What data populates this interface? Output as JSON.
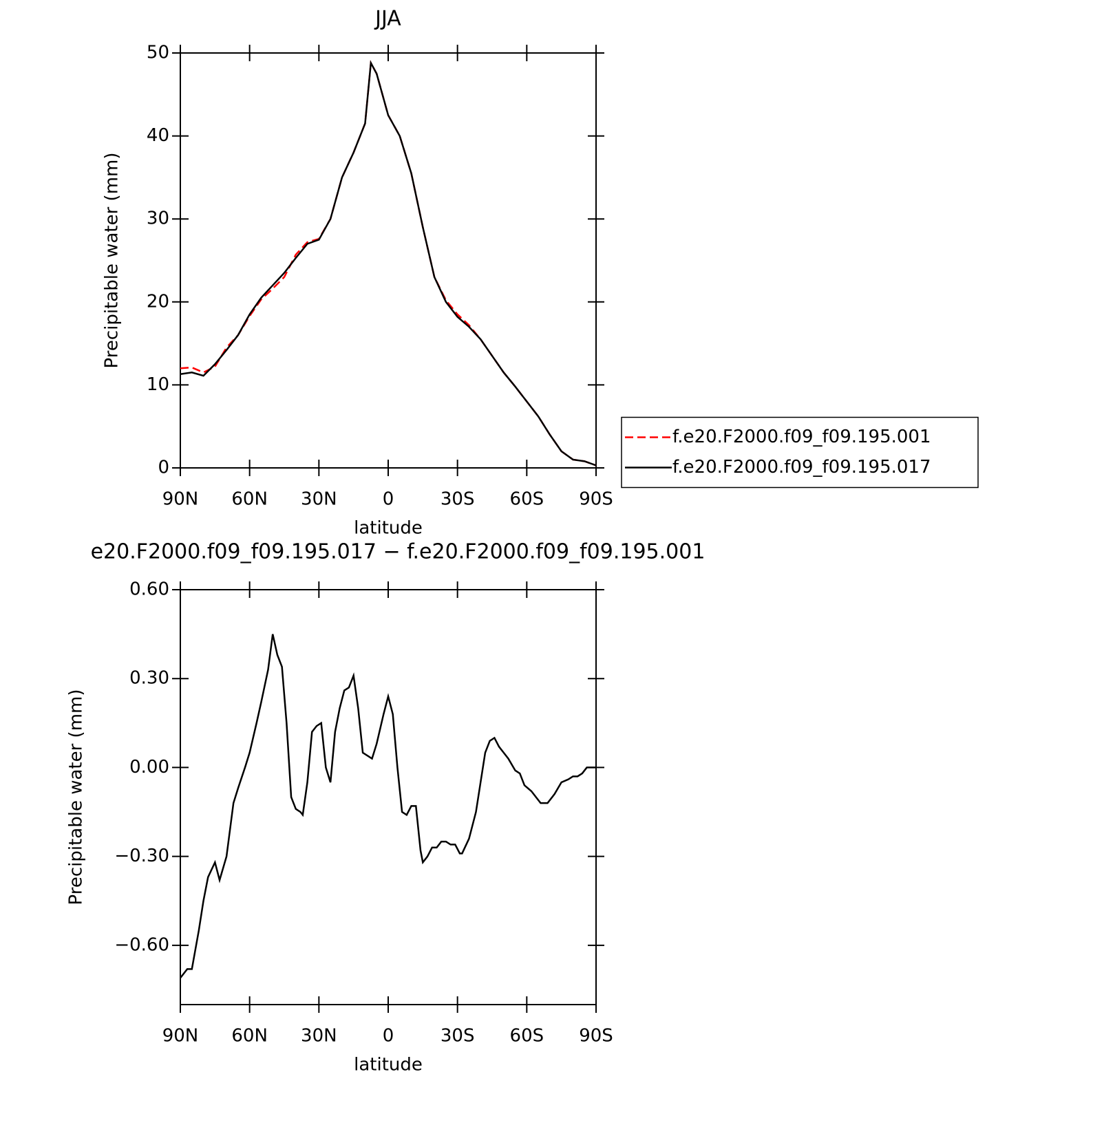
{
  "chart_data": [
    {
      "type": "line",
      "title": "JJA",
      "ylabel": "Precipitable water (mm)",
      "xlabel": "latitude",
      "xlim": [
        90,
        -90
      ],
      "xticks": [
        {
          "value": 90,
          "label": "90N"
        },
        {
          "value": 60,
          "label": "60N"
        },
        {
          "value": 30,
          "label": "30N"
        },
        0,
        {
          "value": -30,
          "label": "30S"
        },
        {
          "value": -60,
          "label": "60S"
        },
        {
          "value": -90,
          "label": "90S"
        }
      ],
      "ylim": [
        0,
        50
      ],
      "yticks": [
        0,
        10,
        20,
        30,
        40,
        50
      ],
      "legend": "right",
      "x": [
        90,
        85,
        80,
        75,
        70,
        65,
        60,
        55,
        50,
        45,
        40,
        35,
        30,
        25,
        20,
        15,
        10,
        7.5,
        5,
        0,
        -5,
        -10,
        -15,
        -20,
        -25,
        -30,
        -35,
        -40,
        -45,
        -50,
        -55,
        -60,
        -65,
        -70,
        -75,
        -80,
        -85,
        -90
      ],
      "series": [
        {
          "name": "f.e20.F2000.f09_f09.195.001",
          "color": "#ff0000",
          "dash": true,
          "values": [
            12,
            12.1,
            11.5,
            12.2,
            14.5,
            16,
            18.3,
            20.3,
            21.6,
            23,
            25.7,
            27.2,
            27.6,
            30,
            35,
            38,
            41.5,
            48.8,
            47.5,
            42.5,
            40,
            35.5,
            29,
            23,
            20.2,
            18.5,
            17.2,
            15.5,
            13.5,
            11.5,
            9.8,
            8,
            6.2,
            4,
            2,
            1,
            0.8,
            0.3
          ]
        },
        {
          "name": "f.e20.F2000.f09_f09.195.017",
          "color": "#000000",
          "dash": false,
          "values": [
            11.3,
            11.5,
            11.1,
            12.5,
            14.2,
            16,
            18.5,
            20.5,
            22,
            23.5,
            25.3,
            27,
            27.5,
            30,
            35,
            38,
            41.5,
            48.8,
            47.5,
            42.5,
            40,
            35.5,
            29,
            23,
            20,
            18.2,
            17,
            15.5,
            13.5,
            11.5,
            9.8,
            8,
            6.2,
            4,
            2,
            1,
            0.8,
            0.3
          ]
        }
      ]
    },
    {
      "type": "line",
      "title": "e20.F2000.f09_f09.195.017 − f.e20.F2000.f09_f09.195.001",
      "ylabel": "Precipitable water (mm)",
      "xlabel": "latitude",
      "xlim": [
        90,
        -90
      ],
      "xticks": [
        {
          "value": 90,
          "label": "90N"
        },
        {
          "value": 60,
          "label": "60N"
        },
        {
          "value": 30,
          "label": "30N"
        },
        0,
        {
          "value": -30,
          "label": "30S"
        },
        {
          "value": -60,
          "label": "60S"
        },
        {
          "value": -90,
          "label": "90S"
        }
      ],
      "ylim": [
        -0.8,
        0.6
      ],
      "yticks": [
        {
          "value": 0.6,
          "label": "0.60"
        },
        {
          "value": 0.3,
          "label": "0.30"
        },
        {
          "value": 0,
          "label": "0.00"
        },
        {
          "value": -0.3,
          "label": "−0.30"
        },
        {
          "value": -0.6,
          "label": "−0.60"
        }
      ],
      "x": [
        90,
        87,
        85,
        82,
        80,
        78,
        75,
        73,
        70,
        67,
        65,
        62,
        60,
        57,
        55,
        52,
        50,
        48,
        46,
        44,
        42,
        40,
        38,
        37,
        35,
        33,
        31,
        29,
        27,
        25,
        23,
        21,
        19,
        17,
        15,
        13,
        11,
        9,
        7,
        5,
        2,
        0,
        -2,
        -4,
        -6,
        -8,
        -10,
        -12,
        -14,
        -15,
        -17,
        -19,
        -21,
        -23,
        -25,
        -27,
        -29,
        -31,
        -32,
        -35,
        -38,
        -40,
        -42,
        -44,
        -46,
        -48,
        -50,
        -52,
        -55,
        -57,
        -59,
        -62,
        -64,
        -66,
        -69,
        -72,
        -75,
        -78,
        -80,
        -82,
        -84,
        -86,
        -90
      ],
      "series": [
        {
          "color": "#000000",
          "dash": false,
          "values": [
            -0.71,
            -0.68,
            -0.68,
            -0.55,
            -0.45,
            -0.37,
            -0.32,
            -0.38,
            -0.3,
            -0.12,
            -0.07,
            0.0,
            0.05,
            0.15,
            0.22,
            0.33,
            0.45,
            0.38,
            0.34,
            0.15,
            -0.1,
            -0.14,
            -0.15,
            -0.16,
            -0.05,
            0.12,
            0.14,
            0.15,
            0.0,
            -0.05,
            0.12,
            0.2,
            0.26,
            0.27,
            0.31,
            0.2,
            0.05,
            0.04,
            0.03,
            0.08,
            0.18,
            0.24,
            0.18,
            0.0,
            -0.15,
            -0.16,
            -0.13,
            -0.13,
            -0.28,
            -0.32,
            -0.3,
            -0.27,
            -0.27,
            -0.25,
            -0.25,
            -0.26,
            -0.26,
            -0.29,
            -0.29,
            -0.24,
            -0.15,
            -0.05,
            0.05,
            0.09,
            0.1,
            0.07,
            0.05,
            0.03,
            -0.01,
            -0.02,
            -0.06,
            -0.08,
            -0.1,
            -0.12,
            -0.12,
            -0.09,
            -0.05,
            -0.04,
            -0.03,
            -0.03,
            -0.02,
            0,
            0
          ]
        }
      ]
    }
  ]
}
